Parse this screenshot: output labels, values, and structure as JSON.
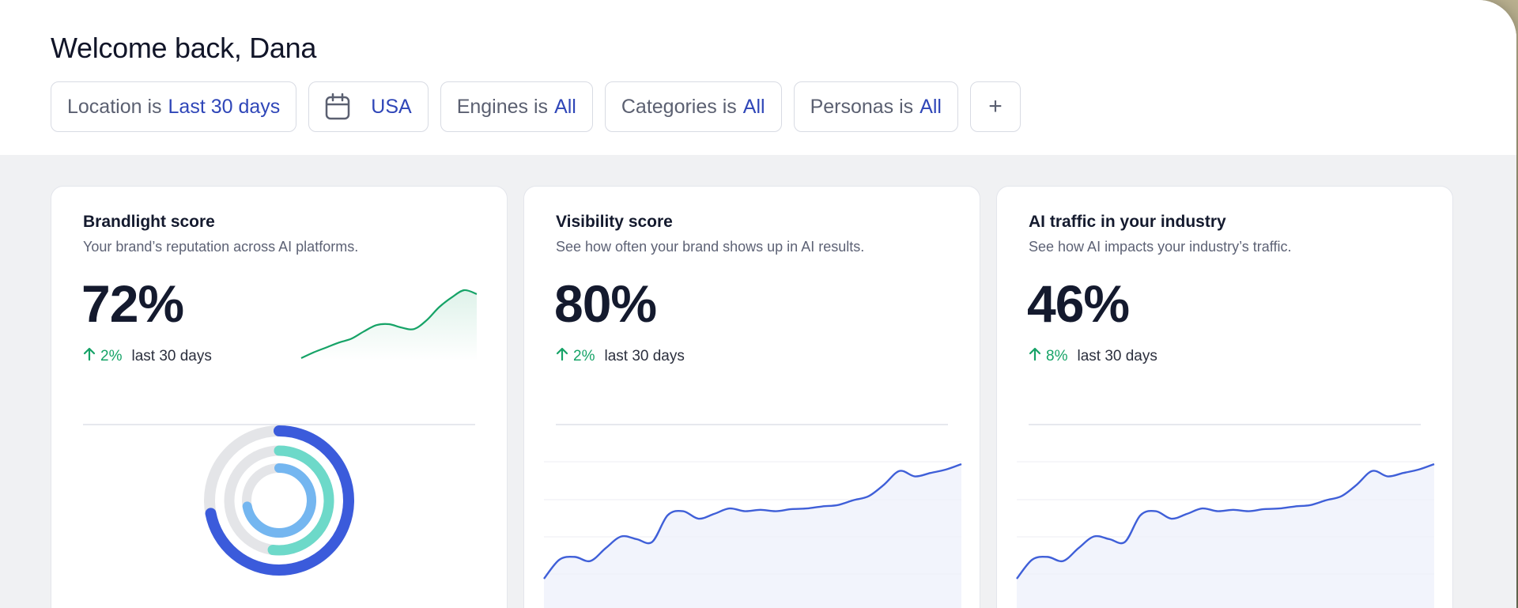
{
  "header": {
    "title": "Welcome back, Dana"
  },
  "filters": [
    {
      "key": "Location is",
      "value": "Last 30 days"
    },
    {
      "key": "",
      "value": "USA",
      "icon": "calendar-icon"
    },
    {
      "key": "Engines is",
      "value": "All"
    },
    {
      "key": "Categories is",
      "value": "All"
    },
    {
      "key": "Personas is",
      "value": "All"
    }
  ],
  "add_filter_label": "+",
  "cards": [
    {
      "title": "Brandlight score",
      "subtitle": "Your brand’s reputation across AI platforms.",
      "value": "72%",
      "delta": "2%",
      "period": "last 30 days"
    },
    {
      "title": "Visibility score",
      "subtitle": "See how often your brand shows up in AI results.",
      "value": "80%",
      "delta": "2%",
      "period": "last 30 days"
    },
    {
      "title": "AI traffic in your industry",
      "subtitle": "See how AI impacts your industry’s traffic.",
      "value": "46%",
      "delta": "8%",
      "period": "last 30 days"
    }
  ],
  "colors": {
    "accent_blue": "#3b5bdb",
    "line_blue": "#3f5fd8",
    "green": "#16a367",
    "teal": "#6dd9c9",
    "light_blue": "#74b6f0",
    "ring_track": "#e4e5e8"
  },
  "chart_data": [
    {
      "type": "line",
      "title": "Brandlight score sparkline",
      "values": [
        0,
        12,
        22,
        32,
        40,
        55,
        68,
        70,
        63,
        60,
        78,
        105,
        125,
        140,
        132
      ],
      "color": "#16a367"
    },
    {
      "type": "area",
      "title": "Visibility score trend",
      "values": [
        0,
        28,
        32,
        26,
        45,
        62,
        58,
        54,
        93,
        99,
        88,
        95,
        103,
        99,
        101,
        99,
        102,
        103,
        106,
        108,
        115,
        121,
        138,
        158,
        150,
        155,
        160,
        168
      ]
    },
    {
      "type": "area",
      "title": "AI traffic trend",
      "values": [
        0,
        28,
        32,
        26,
        45,
        62,
        58,
        54,
        93,
        99,
        88,
        95,
        103,
        99,
        101,
        99,
        102,
        103,
        106,
        108,
        115,
        121,
        138,
        158,
        150,
        155,
        160,
        168
      ]
    },
    {
      "type": "pie",
      "title": "Brandlight score rings",
      "series": [
        {
          "ring": "outer",
          "fraction": 0.72,
          "color": "#3b5bdb"
        },
        {
          "ring": "middle",
          "fraction": 0.52,
          "color": "#6dd9c9"
        },
        {
          "ring": "inner",
          "fraction": 0.72,
          "color": "#74b6f0"
        }
      ]
    }
  ]
}
